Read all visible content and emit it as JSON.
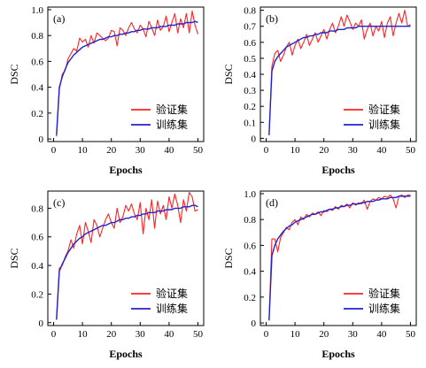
{
  "chart_data": [
    {
      "type": "line",
      "panel_label": "(a)",
      "xlabel": "Epochs",
      "ylabel": "DSC",
      "xlim": [
        -2,
        52
      ],
      "ylim": [
        -0.02,
        1.02
      ],
      "xticks": [
        "0",
        "10",
        "20",
        "30",
        "40",
        "50"
      ],
      "yticks": [
        "0",
        "0.2",
        "0.4",
        "0.6",
        "0.8",
        "1.0"
      ],
      "grid": false,
      "legend_position": "lower-right",
      "x": [
        1,
        2,
        3,
        4,
        5,
        6,
        7,
        8,
        9,
        10,
        11,
        12,
        13,
        14,
        15,
        16,
        17,
        18,
        19,
        20,
        21,
        22,
        23,
        24,
        25,
        26,
        27,
        28,
        29,
        30,
        31,
        32,
        33,
        34,
        35,
        36,
        37,
        38,
        39,
        40,
        41,
        42,
        43,
        44,
        45,
        46,
        47,
        48,
        49,
        50
      ],
      "series": [
        {
          "name": "验证集",
          "color": "#ff2222",
          "values": [
            0.02,
            0.38,
            0.5,
            0.53,
            0.62,
            0.66,
            0.7,
            0.68,
            0.78,
            0.75,
            0.77,
            0.71,
            0.8,
            0.74,
            0.82,
            0.8,
            0.78,
            0.76,
            0.78,
            0.84,
            0.83,
            0.72,
            0.86,
            0.84,
            0.8,
            0.86,
            0.9,
            0.85,
            0.82,
            0.88,
            0.85,
            0.79,
            0.91,
            0.86,
            0.8,
            0.92,
            0.84,
            0.87,
            0.95,
            0.83,
            0.9,
            0.97,
            0.82,
            0.93,
            0.86,
            0.97,
            0.82,
            0.99,
            0.88,
            0.81
          ]
        },
        {
          "name": "训练集",
          "color": "#2222cc",
          "values": [
            0.03,
            0.4,
            0.48,
            0.54,
            0.59,
            0.62,
            0.65,
            0.67,
            0.69,
            0.71,
            0.72,
            0.73,
            0.74,
            0.75,
            0.76,
            0.77,
            0.77,
            0.78,
            0.79,
            0.79,
            0.8,
            0.8,
            0.81,
            0.81,
            0.82,
            0.82,
            0.83,
            0.83,
            0.84,
            0.84,
            0.85,
            0.85,
            0.85,
            0.86,
            0.86,
            0.86,
            0.87,
            0.87,
            0.87,
            0.88,
            0.88,
            0.88,
            0.89,
            0.89,
            0.89,
            0.9,
            0.9,
            0.9,
            0.91,
            0.9
          ]
        }
      ]
    },
    {
      "type": "line",
      "panel_label": "(b)",
      "xlabel": "Epochs",
      "ylabel": "DSC",
      "xlim": [
        -2,
        52
      ],
      "ylim": [
        -0.02,
        0.82
      ],
      "xticks": [
        "0",
        "10",
        "20",
        "30",
        "40",
        "50"
      ],
      "yticks": [
        "0",
        "0.1",
        "0.2",
        "0.3",
        "0.4",
        "0.5",
        "0.6",
        "0.7",
        "0.8"
      ],
      "grid": false,
      "legend_position": "lower-right",
      "x": [
        1,
        2,
        3,
        4,
        5,
        6,
        7,
        8,
        9,
        10,
        11,
        12,
        13,
        14,
        15,
        16,
        17,
        18,
        19,
        20,
        21,
        22,
        23,
        24,
        25,
        26,
        27,
        28,
        29,
        30,
        31,
        32,
        33,
        34,
        35,
        36,
        37,
        38,
        39,
        40,
        41,
        42,
        43,
        44,
        45,
        46,
        47,
        48,
        49,
        50
      ],
      "series": [
        {
          "name": "验证集",
          "color": "#ff2222",
          "values": [
            0.02,
            0.45,
            0.53,
            0.55,
            0.48,
            0.52,
            0.57,
            0.6,
            0.52,
            0.58,
            0.62,
            0.56,
            0.6,
            0.65,
            0.58,
            0.62,
            0.66,
            0.6,
            0.64,
            0.68,
            0.62,
            0.68,
            0.72,
            0.66,
            0.7,
            0.76,
            0.7,
            0.77,
            0.73,
            0.68,
            0.72,
            0.7,
            0.74,
            0.62,
            0.68,
            0.72,
            0.64,
            0.7,
            0.67,
            0.73,
            0.63,
            0.72,
            0.76,
            0.64,
            0.72,
            0.78,
            0.72,
            0.8,
            0.7,
            0.71
          ]
        },
        {
          "name": "训练集",
          "color": "#2222cc",
          "values": [
            0.02,
            0.42,
            0.48,
            0.51,
            0.53,
            0.55,
            0.57,
            0.58,
            0.59,
            0.6,
            0.61,
            0.62,
            0.63,
            0.63,
            0.64,
            0.64,
            0.65,
            0.65,
            0.66,
            0.66,
            0.66,
            0.67,
            0.67,
            0.67,
            0.68,
            0.68,
            0.68,
            0.69,
            0.69,
            0.69,
            0.69,
            0.7,
            0.7,
            0.7,
            0.7,
            0.7,
            0.7,
            0.7,
            0.7,
            0.7,
            0.7,
            0.7,
            0.7,
            0.7,
            0.7,
            0.7,
            0.7,
            0.7,
            0.7,
            0.7
          ]
        }
      ]
    },
    {
      "type": "line",
      "panel_label": "(c)",
      "xlabel": "Epochs",
      "ylabel": "DSC",
      "xlim": [
        -2,
        52
      ],
      "ylim": [
        -0.02,
        0.92
      ],
      "xticks": [
        "0",
        "10",
        "20",
        "30",
        "40",
        "50"
      ],
      "yticks": [
        "0",
        "0.2",
        "0.4",
        "0.6",
        "0.8"
      ],
      "grid": false,
      "legend_position": "lower-right",
      "x": [
        1,
        2,
        3,
        4,
        5,
        6,
        7,
        8,
        9,
        10,
        11,
        12,
        13,
        14,
        15,
        16,
        17,
        18,
        19,
        20,
        21,
        22,
        23,
        24,
        25,
        26,
        27,
        28,
        29,
        30,
        31,
        32,
        33,
        34,
        35,
        36,
        37,
        38,
        39,
        40,
        41,
        42,
        43,
        44,
        45,
        46,
        47,
        48,
        49,
        50
      ],
      "series": [
        {
          "name": "验证集",
          "color": "#ff2222",
          "values": [
            0.03,
            0.38,
            0.4,
            0.46,
            0.5,
            0.58,
            0.52,
            0.62,
            0.68,
            0.55,
            0.7,
            0.64,
            0.56,
            0.72,
            0.68,
            0.6,
            0.66,
            0.72,
            0.76,
            0.7,
            0.66,
            0.8,
            0.7,
            0.74,
            0.82,
            0.78,
            0.83,
            0.76,
            0.72,
            0.84,
            0.62,
            0.8,
            0.72,
            0.86,
            0.66,
            0.85,
            0.76,
            0.82,
            0.72,
            0.88,
            0.8,
            0.9,
            0.82,
            0.7,
            0.86,
            0.78,
            0.91,
            0.88,
            0.78,
            0.79
          ]
        },
        {
          "name": "训练集",
          "color": "#2222cc",
          "values": [
            0.02,
            0.36,
            0.41,
            0.45,
            0.49,
            0.52,
            0.55,
            0.57,
            0.59,
            0.6,
            0.62,
            0.63,
            0.64,
            0.65,
            0.66,
            0.67,
            0.68,
            0.68,
            0.69,
            0.7,
            0.7,
            0.71,
            0.72,
            0.72,
            0.73,
            0.73,
            0.74,
            0.74,
            0.75,
            0.75,
            0.76,
            0.76,
            0.77,
            0.77,
            0.77,
            0.78,
            0.78,
            0.78,
            0.79,
            0.79,
            0.79,
            0.8,
            0.8,
            0.8,
            0.81,
            0.81,
            0.81,
            0.82,
            0.82,
            0.81
          ]
        }
      ]
    },
    {
      "type": "line",
      "panel_label": "(d)",
      "xlabel": "Epochs",
      "ylabel": "DSC",
      "xlim": [
        -2,
        52
      ],
      "ylim": [
        -0.02,
        1.02
      ],
      "xticks": [
        "0",
        "10",
        "20",
        "30",
        "40",
        "50"
      ],
      "yticks": [
        "0",
        "0.2",
        "0.4",
        "0.6",
        "0.8",
        "1.0"
      ],
      "grid": false,
      "legend_position": "lower-right",
      "x": [
        1,
        2,
        3,
        4,
        5,
        6,
        7,
        8,
        9,
        10,
        11,
        12,
        13,
        14,
        15,
        16,
        17,
        18,
        19,
        20,
        21,
        22,
        23,
        24,
        25,
        26,
        27,
        28,
        29,
        30,
        31,
        32,
        33,
        34,
        35,
        36,
        37,
        38,
        39,
        40,
        41,
        42,
        43,
        44,
        45,
        46,
        47,
        48,
        49,
        50
      ],
      "series": [
        {
          "name": "验证集",
          "color": "#ff2222",
          "values": [
            0.02,
            0.65,
            0.65,
            0.55,
            0.66,
            0.7,
            0.74,
            0.72,
            0.78,
            0.8,
            0.76,
            0.82,
            0.8,
            0.84,
            0.82,
            0.85,
            0.84,
            0.86,
            0.83,
            0.87,
            0.86,
            0.88,
            0.87,
            0.9,
            0.88,
            0.91,
            0.9,
            0.92,
            0.89,
            0.93,
            0.91,
            0.93,
            0.92,
            0.95,
            0.88,
            0.94,
            0.96,
            0.95,
            0.97,
            0.96,
            0.98,
            0.97,
            0.99,
            0.96,
            0.89,
            0.98,
            0.99,
            0.97,
            0.99,
            0.99
          ]
        },
        {
          "name": "训练集",
          "color": "#2222cc",
          "values": [
            0.02,
            0.52,
            0.6,
            0.65,
            0.68,
            0.71,
            0.73,
            0.75,
            0.76,
            0.78,
            0.79,
            0.8,
            0.81,
            0.82,
            0.83,
            0.84,
            0.84,
            0.85,
            0.86,
            0.86,
            0.87,
            0.88,
            0.88,
            0.89,
            0.89,
            0.9,
            0.9,
            0.91,
            0.91,
            0.92,
            0.92,
            0.92,
            0.93,
            0.93,
            0.94,
            0.94,
            0.94,
            0.95,
            0.95,
            0.96,
            0.96,
            0.96,
            0.97,
            0.97,
            0.97,
            0.98,
            0.98,
            0.98,
            0.98,
            0.98
          ]
        }
      ]
    }
  ]
}
